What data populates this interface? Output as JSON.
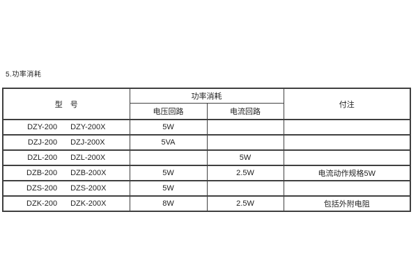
{
  "page": {
    "title": "5.功率消耗"
  },
  "table": {
    "header": {
      "model": "型　号",
      "power_group": "功率消耗",
      "voltage": "电压回路",
      "current": "电流回路",
      "note": "付注"
    },
    "rows": [
      {
        "model1": "DZY-200",
        "model2": "DZY-200X",
        "voltage": "5W",
        "current": "",
        "note": ""
      },
      {
        "model1": "DZJ-200",
        "model2": "DZJ-200X",
        "voltage": "5VA",
        "current": "",
        "note": ""
      },
      {
        "model1": "DZL-200",
        "model2": "DZL-200X",
        "voltage": "",
        "current": "5W",
        "note": ""
      },
      {
        "model1": "DZB-200",
        "model2": "DZB-200X",
        "voltage": "5W",
        "current": "2.5W",
        "note": "电流动作规格5W"
      },
      {
        "model1": "DZS-200",
        "model2": "DZS-200X",
        "voltage": "5W",
        "current": "",
        "note": ""
      },
      {
        "model1": "DZK-200",
        "model2": "DZK-200X",
        "voltage": "8W",
        "current": "2.5W",
        "note": "包括外附电阻"
      }
    ],
    "colors": {
      "border": "#3f3f3f",
      "text": "#1e1e1e",
      "background": "#ffffff"
    }
  }
}
